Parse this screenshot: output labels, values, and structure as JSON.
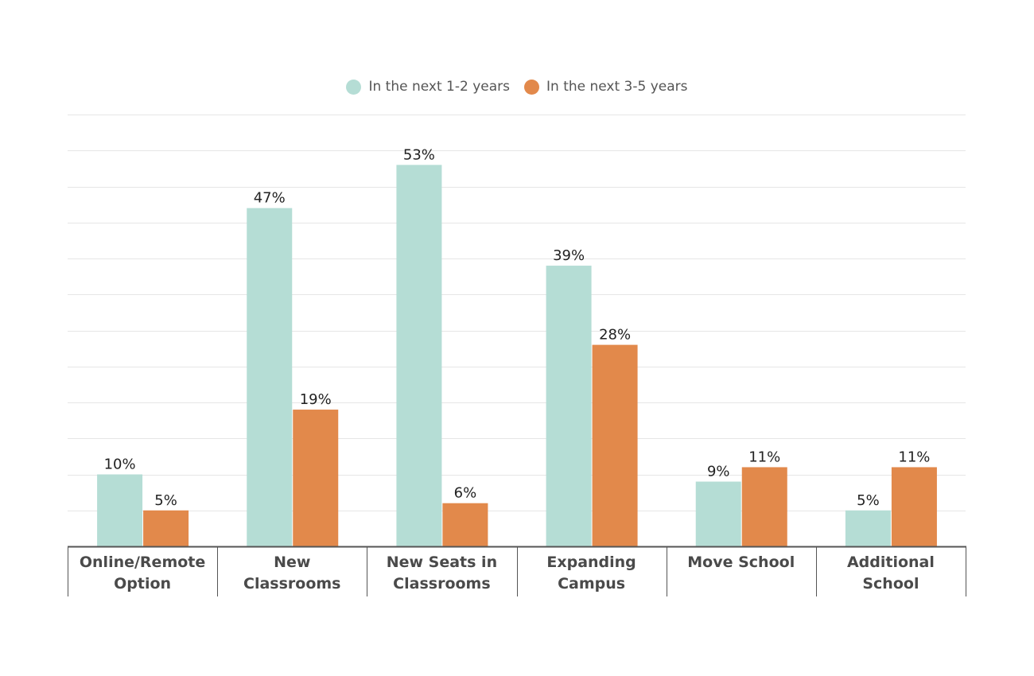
{
  "legend": [
    {
      "label": "In the next 1-2 years",
      "color": "#b5ddd5"
    },
    {
      "label": "In the next 3-5 years",
      "color": "#e2894b"
    }
  ],
  "chart_data": {
    "type": "bar",
    "title": "",
    "xlabel": "",
    "ylabel": "",
    "ylim": [
      0,
      60
    ],
    "grid": true,
    "legend_position": "top-center",
    "categories": [
      [
        "Online/Remote",
        "Option"
      ],
      [
        "New",
        "Classrooms"
      ],
      [
        "New Seats in",
        "Classrooms"
      ],
      [
        "Expanding",
        "Campus"
      ],
      [
        "Move School"
      ],
      [
        "Additional",
        "School"
      ]
    ],
    "series": [
      {
        "name": "In the next 1-2 years",
        "color": "#b5ddd5",
        "values": [
          10,
          47,
          53,
          39,
          9,
          5
        ],
        "labels": [
          "10%",
          "47%",
          "53%",
          "39%",
          "9%",
          "5%"
        ]
      },
      {
        "name": "In the next 3-5 years",
        "color": "#e2894b",
        "values": [
          5,
          19,
          6,
          28,
          11,
          11
        ],
        "labels": [
          "5%",
          "19%",
          "6%",
          "28%",
          "11%",
          "11%"
        ]
      }
    ]
  }
}
